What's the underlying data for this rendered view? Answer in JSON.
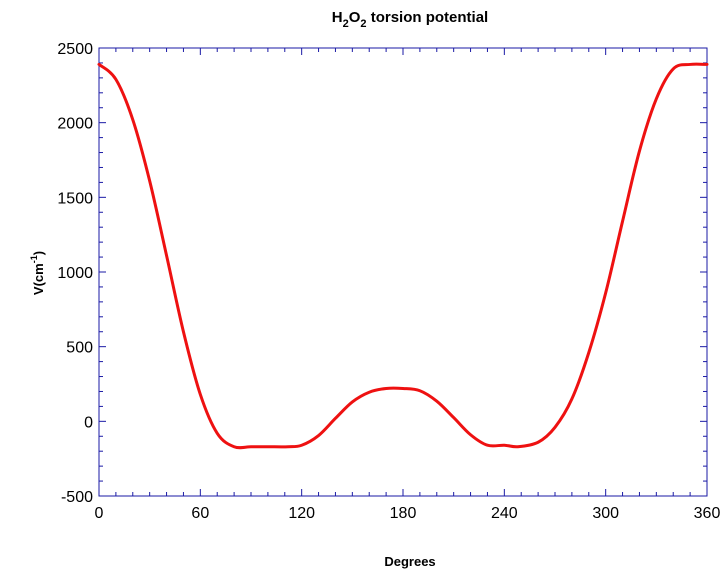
{
  "chart_data": {
    "type": "line",
    "title": {
      "prefix": "H",
      "sub1": "2",
      "mid": "O",
      "sub2": "2",
      "rest": " torsion potential"
    },
    "xlabel": "Degrees",
    "ylabel": {
      "main": "V(cm",
      "sup": "-1",
      "close": ")"
    },
    "xlim": [
      0,
      360
    ],
    "ylim": [
      -500,
      2500
    ],
    "xticks": [
      0,
      60,
      120,
      180,
      240,
      300,
      360
    ],
    "yticks": [
      -500,
      0,
      500,
      1000,
      1500,
      2000,
      2500
    ],
    "grid": false,
    "colors": {
      "line": "#ee1111",
      "frame": "#1a1aa6",
      "text": "#000000"
    },
    "series": [
      {
        "x": [
          0,
          10,
          20,
          30,
          40,
          50,
          60,
          70,
          80,
          90,
          100,
          112,
          120,
          130,
          140,
          150,
          160,
          170,
          180,
          190,
          200,
          210,
          220,
          230,
          240,
          248,
          260,
          270,
          280,
          290,
          300,
          310,
          320,
          330,
          340,
          350,
          360
        ],
        "values": [
          2390,
          2290,
          2020,
          1610,
          1110,
          600,
          180,
          -80,
          -170,
          -170,
          -170,
          -170,
          -160,
          -95,
          20,
          130,
          195,
          220,
          220,
          205,
          135,
          25,
          -90,
          -160,
          -160,
          -170,
          -140,
          -40,
          150,
          460,
          860,
          1340,
          1810,
          2160,
          2360,
          2390,
          2390
        ]
      }
    ]
  }
}
